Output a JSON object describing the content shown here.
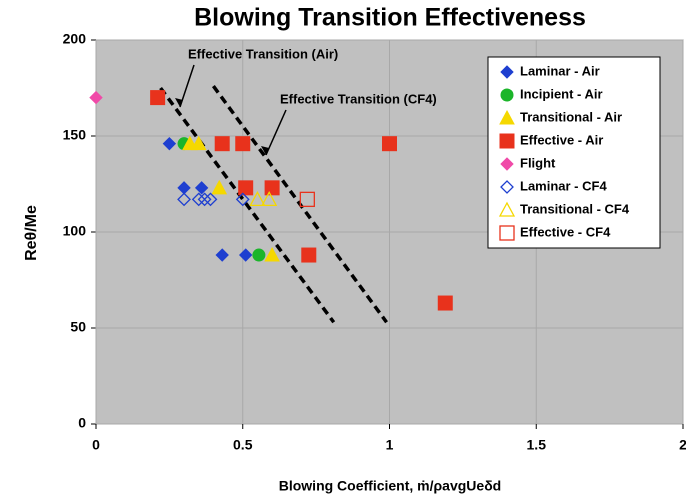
{
  "chart_data": {
    "type": "scatter",
    "title": "Blowing Transition Effectiveness",
    "xlabel": "Blowing Coefficient, ṁ/ρavgUeδd",
    "ylabel": "Reθ/Me",
    "xlim": [
      0,
      2
    ],
    "xticks": [
      0,
      0.5,
      1,
      1.5,
      2
    ],
    "ylim": [
      0,
      200
    ],
    "yticks": [
      0,
      50,
      100,
      150,
      200
    ],
    "grid": true,
    "legend": "upper right",
    "series": [
      {
        "name": "Laminar - Air",
        "color": "#1e3fd0",
        "marker": "diamond",
        "filled": true,
        "x": [
          0.25,
          0.3,
          0.36,
          0.43,
          0.51
        ],
        "values": [
          146,
          123,
          123,
          88,
          88
        ]
      },
      {
        "name": "Incipient - Air",
        "color": "#1bb52a",
        "marker": "circle",
        "filled": true,
        "x": [
          0.3,
          0.555
        ],
        "values": [
          146,
          88
        ]
      },
      {
        "name": "Transitional - Air",
        "color": "#f5d800",
        "marker": "triangle",
        "filled": true,
        "x": [
          0.32,
          0.35,
          0.42,
          0.6
        ],
        "values": [
          146,
          146,
          123,
          88
        ]
      },
      {
        "name": "Effective - Air",
        "color": "#e8321c",
        "marker": "square",
        "filled": true,
        "x": [
          0.21,
          0.43,
          0.5,
          1.0,
          0.51,
          0.6,
          0.725,
          1.19
        ],
        "values": [
          170,
          146,
          146,
          146,
          123,
          123,
          88,
          63
        ]
      },
      {
        "name": "Flight",
        "color": "#f04aa8",
        "marker": "diamond",
        "filled": true,
        "x": [
          0
        ],
        "values": [
          170
        ]
      },
      {
        "name": "Laminar - CF4",
        "color": "#1e3fd0",
        "marker": "diamond",
        "filled": false,
        "x": [
          0.3,
          0.35,
          0.37,
          0.39,
          0.5
        ],
        "values": [
          117,
          117,
          117,
          117,
          117
        ]
      },
      {
        "name": "Transitional - CF4",
        "color": "#f5d800",
        "marker": "triangle",
        "filled": false,
        "x": [
          0.55,
          0.59
        ],
        "values": [
          117,
          117
        ]
      },
      {
        "name": "Effective - CF4",
        "color": "#e8321c",
        "marker": "square",
        "filled": false,
        "x": [
          0.72
        ],
        "values": [
          117
        ]
      }
    ],
    "reference_lines": [
      {
        "label": "Effective Transition (Air)",
        "x": [
          0.22,
          0.81
        ],
        "values": [
          175,
          53
        ]
      },
      {
        "label": "Effective Transition (CF4)",
        "x": [
          0.4,
          0.99
        ],
        "values": [
          176,
          53
        ]
      }
    ]
  }
}
